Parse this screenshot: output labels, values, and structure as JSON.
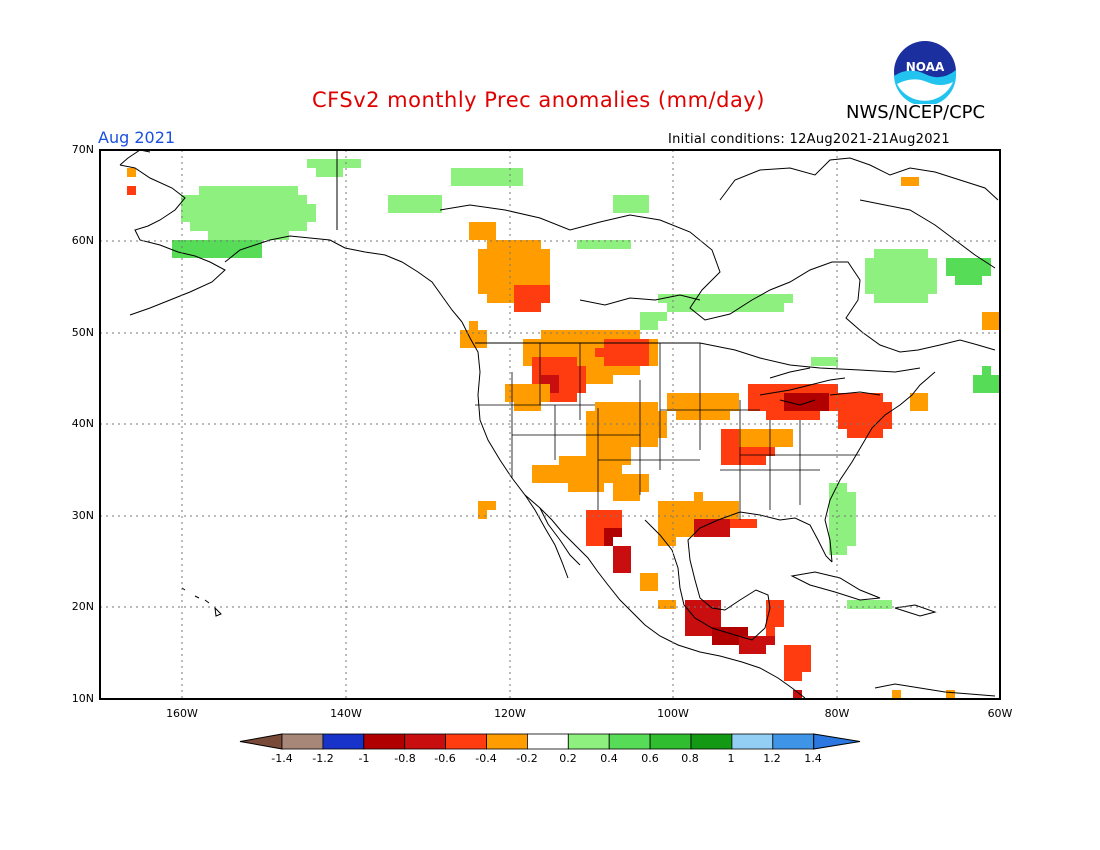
{
  "header": {
    "title": "CFSv2 monthly Prec anomalies (mm/day)",
    "month": "Aug 2021",
    "agency": "NWS/NCEP/CPC",
    "initial_conditions": "Initial conditions: 12Aug2021-21Aug2021",
    "logo_text": "NOAA"
  },
  "colors": {
    "title": "#e00000",
    "month": "#1a50e0",
    "map_border": "#000000",
    "land_outline": "#000000"
  },
  "axes": {
    "lat_labels": [
      "70N",
      "60N",
      "50N",
      "40N",
      "30N",
      "20N",
      "10N"
    ],
    "lon_labels": [
      "160W",
      "140W",
      "120W",
      "100W",
      "80W",
      "60W"
    ]
  },
  "colorbar": {
    "colors": [
      "#7a4a38",
      "#a78878",
      "#1733c9",
      "#b00000",
      "#c80e0e",
      "#ff3b10",
      "#ff9d00",
      "#ffffff",
      "#8ef07e",
      "#56dc56",
      "#30be30",
      "#149914",
      "#93cef5",
      "#3e95e8",
      "#2a78e0"
    ],
    "labels": [
      "-1.4",
      "-1.2",
      "-1",
      "-0.8",
      "-0.6",
      "-0.4",
      "-0.2",
      "0.2",
      "0.4",
      "0.6",
      "0.8",
      "1",
      "1.2",
      "1.4"
    ]
  }
}
